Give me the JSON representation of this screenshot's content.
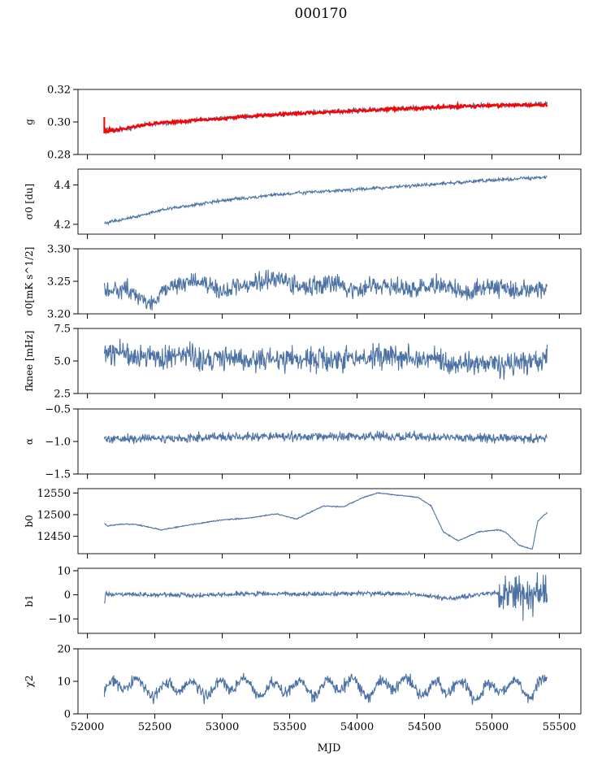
{
  "chart_data": {
    "title": "000170",
    "type": "line",
    "xlabel": "MJD",
    "x_range": [
      51930,
      55660
    ],
    "x_ticks": [
      52000,
      52500,
      53000,
      53500,
      54000,
      54500,
      55000,
      55500
    ],
    "x_tick_labels": [
      "52000",
      "52500",
      "53000",
      "53500",
      "54000",
      "54500",
      "55000",
      "55500"
    ],
    "data_x_start": 52125,
    "data_x_end": 55410,
    "series_color": "#4c72a4",
    "overlay_color": "#ff0000",
    "panels": [
      {
        "key": "g",
        "ylabel": "g",
        "ylim": [
          0.28,
          0.32
        ],
        "yticks": [
          0.28,
          0.3,
          0.32
        ],
        "ytick_labels": [
          "0.28",
          "0.30",
          "0.32"
        ],
        "x": [
          52125,
          52200,
          52300,
          52500,
          52800,
          53000,
          53300,
          53600,
          54000,
          54300,
          54600,
          54900,
          55200,
          55410
        ],
        "y": [
          0.2965,
          0.295,
          0.296,
          0.299,
          0.301,
          0.302,
          0.304,
          0.3055,
          0.307,
          0.308,
          0.309,
          0.31,
          0.3105,
          0.311
        ],
        "overlay_x": [
          52125,
          52200,
          52300,
          52500,
          52800,
          53000,
          53300,
          53600,
          54000,
          54300,
          54600,
          54900,
          55200,
          55410
        ],
        "overlay_y": [
          0.2945,
          0.2948,
          0.2965,
          0.299,
          0.301,
          0.302,
          0.304,
          0.3055,
          0.307,
          0.308,
          0.309,
          0.31,
          0.3105,
          0.3105
        ]
      },
      {
        "key": "sigma0_du",
        "ylabel": "σ0 [du]",
        "ylim": [
          4.15,
          4.48
        ],
        "yticks": [
          4.2,
          4.4
        ],
        "ytick_labels": [
          "4.2",
          "4.4"
        ],
        "x": [
          52125,
          52300,
          52600,
          53000,
          53400,
          53800,
          54200,
          54600,
          55000,
          55410
        ],
        "y": [
          4.205,
          4.23,
          4.28,
          4.32,
          4.35,
          4.37,
          4.385,
          4.405,
          4.425,
          4.44
        ]
      },
      {
        "key": "sigma0_mk",
        "ylabel": "σ0[mK s^1/2]",
        "ylim": [
          3.2,
          3.3
        ],
        "yticks": [
          3.2,
          3.25,
          3.3
        ],
        "ytick_labels": [
          "3.20",
          "3.25",
          "3.30"
        ],
        "x": [
          52125,
          52300,
          52450,
          52600,
          52800,
          53000,
          53200,
          53400,
          53600,
          53800,
          54000,
          54200,
          54400,
          54600,
          54800,
          55000,
          55200,
          55410
        ],
        "y": [
          3.233,
          3.24,
          3.212,
          3.242,
          3.25,
          3.235,
          3.245,
          3.255,
          3.24,
          3.248,
          3.238,
          3.245,
          3.236,
          3.246,
          3.232,
          3.244,
          3.236,
          3.238
        ]
      },
      {
        "key": "fknee",
        "ylabel": "fknee [mHz]",
        "ylim": [
          2.5,
          7.5
        ],
        "yticks": [
          2.5,
          5.0,
          7.5
        ],
        "ytick_labels": [
          "2.5",
          "5.0",
          "7.5"
        ],
        "x": [
          52125,
          52400,
          52700,
          53000,
          53300,
          53600,
          53900,
          54200,
          54500,
          54800,
          55100,
          55410
        ],
        "y": [
          5.8,
          5.3,
          5.4,
          5.2,
          5.1,
          5.3,
          5.0,
          5.4,
          5.1,
          4.9,
          4.7,
          5.0
        ]
      },
      {
        "key": "alpha",
        "ylabel": "α",
        "ylim": [
          -1.5,
          -0.5
        ],
        "yticks": [
          -1.5,
          -1.0,
          -0.5
        ],
        "ytick_labels": [
          "−1.5",
          "−1.0",
          "−0.5"
        ],
        "x": [
          52125,
          52500,
          53000,
          53500,
          54000,
          54500,
          55000,
          55410
        ],
        "y": [
          -0.97,
          -0.95,
          -0.93,
          -0.93,
          -0.92,
          -0.93,
          -0.95,
          -0.93
        ]
      },
      {
        "key": "b0",
        "ylabel": "b0",
        "ylim": [
          12410,
          12560
        ],
        "yticks": [
          12450,
          12500,
          12550
        ],
        "ytick_labels": [
          "12450",
          "12500",
          "12550"
        ],
        "x": [
          52125,
          52150,
          52250,
          52350,
          52550,
          52750,
          53000,
          53200,
          53400,
          53550,
          53750,
          53900,
          54050,
          54150,
          54300,
          54450,
          54550,
          54640,
          54750,
          54900,
          55050,
          55100,
          55200,
          55300,
          55340,
          55410
        ],
        "y": [
          12480,
          12474,
          12478,
          12478,
          12465,
          12476,
          12488,
          12492,
          12502,
          12490,
          12520,
          12518,
          12540,
          12550,
          12545,
          12540,
          12520,
          12460,
          12440,
          12460,
          12465,
          12460,
          12430,
          12420,
          12485,
          12505
        ]
      },
      {
        "key": "b1",
        "ylabel": "b1",
        "ylim": [
          -16,
          11
        ],
        "yticks": [
          -10,
          0,
          10
        ],
        "ytick_labels": [
          "−10",
          "0",
          "10"
        ],
        "x": [
          52125,
          52135,
          52400,
          52800,
          53200,
          53600,
          54000,
          54400,
          54700,
          55000,
          55410
        ],
        "y": [
          -3.5,
          0.3,
          0.1,
          -0.2,
          0.5,
          0.2,
          0.6,
          0.3,
          -1.5,
          0.8,
          0.5
        ]
      },
      {
        "key": "chi2",
        "ylabel": "χ2",
        "ylim": [
          0,
          20
        ],
        "yticks": [
          0,
          10,
          20
        ],
        "ytick_labels": [
          "0",
          "10",
          "20"
        ],
        "x": [
          52125,
          52300,
          52500,
          52700,
          52900,
          53100,
          53300,
          53500,
          53700,
          53900,
          54100,
          54300,
          54500,
          54700,
          54900,
          55100,
          55300,
          55410
        ],
        "y": [
          7,
          10,
          7,
          9,
          7,
          10,
          7,
          9,
          7,
          10,
          7,
          10,
          7,
          9,
          6,
          9,
          7,
          10
        ]
      }
    ]
  }
}
